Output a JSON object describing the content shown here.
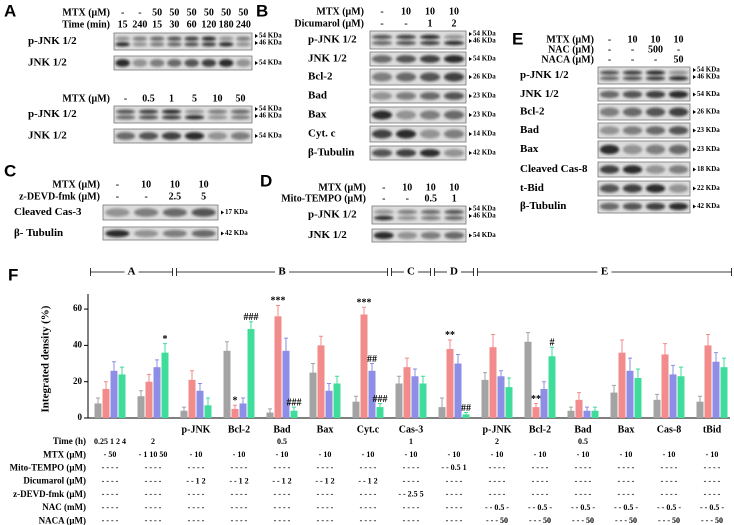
{
  "blots": [
    {
      "letter": "A",
      "conditions": [
        {
          "label": "MTX (μM)",
          "lanes": [
            "-",
            "-",
            "50",
            "50",
            "50",
            "50",
            "50",
            "50"
          ]
        },
        {
          "label": "Time (min)",
          "lanes": [
            "15",
            "240",
            "15",
            "30",
            "60",
            "120",
            "180",
            "240"
          ]
        }
      ],
      "rows": [
        {
          "label": "p-JNK 1/2",
          "markers": [
            "54 KDa",
            "46 KDa"
          ]
        },
        {
          "label": "JNK 1/2",
          "markers": [
            "54 KDa"
          ]
        }
      ]
    },
    {
      "conditions": [
        {
          "label": "MTX (μM)",
          "lanes": [
            "-",
            "0.5",
            "1",
            "5",
            "10",
            "50"
          ]
        }
      ],
      "rows": [
        {
          "label": "p-JNK 1/2",
          "markers": [
            "54 KDa",
            "46 KDa"
          ]
        },
        {
          "label": "JNK 1/2",
          "markers": [
            "54 KDa"
          ]
        }
      ]
    },
    {
      "letter": "C",
      "conditions": [
        {
          "label": "MTX (μM)",
          "lanes": [
            "-",
            "10",
            "10",
            "10"
          ]
        },
        {
          "label": "z-DEVD-fmk (μM)",
          "lanes": [
            "-",
            "-",
            "2.5",
            "5"
          ]
        }
      ],
      "rows": [
        {
          "label": "Cleaved Cas-3",
          "markers": [
            "17 KDa"
          ]
        },
        {
          "label": "β- Tubulin",
          "markers": [
            "42 KDa"
          ]
        }
      ]
    },
    {
      "letter": "B",
      "conditions": [
        {
          "label": "MTX (μM)",
          "lanes": [
            "-",
            "10",
            "10",
            "10"
          ]
        },
        {
          "label": "Dicumarol (μM)",
          "lanes": [
            "-",
            "-",
            "1",
            "2"
          ]
        }
      ],
      "rows": [
        {
          "label": "p-JNK 1/2",
          "markers": [
            "54 KDa",
            "46 KDa"
          ]
        },
        {
          "label": "JNK 1/2",
          "markers": [
            "54 KDa"
          ]
        },
        {
          "label": "Bcl-2",
          "markers": [
            "26 KDa"
          ]
        },
        {
          "label": "Bad",
          "markers": [
            "23 KDa"
          ]
        },
        {
          "label": "Bax",
          "markers": [
            "23 KDa"
          ]
        },
        {
          "label": "Cyt. c",
          "markers": [
            "14 KDa"
          ]
        },
        {
          "label": "β-Tubulin",
          "markers": [
            "42 KDa"
          ]
        }
      ]
    },
    {
      "letter": "D",
      "conditions": [
        {
          "label": "MTX (μM)",
          "lanes": [
            "-",
            "10",
            "10",
            "10"
          ]
        },
        {
          "label": "Mito-TEMPO (μM)",
          "lanes": [
            "-",
            "-",
            "0.5",
            "1"
          ]
        }
      ],
      "rows": [
        {
          "label": "p-JNK 1/2",
          "markers": [
            "54 KDa",
            "46 KDa"
          ]
        },
        {
          "label": "JNK 1/2",
          "markers": [
            "54 KDa"
          ]
        }
      ]
    },
    {
      "letter": "E",
      "conditions": [
        {
          "label": "MTX (μM)",
          "lanes": [
            "-",
            "10",
            "10",
            "10"
          ]
        },
        {
          "label": "NAC (μM)",
          "lanes": [
            "-",
            "-",
            "500",
            "-"
          ]
        },
        {
          "label": "NACA (μM)",
          "lanes": [
            "-",
            "-",
            "-",
            "50"
          ]
        }
      ],
      "rows": [
        {
          "label": "p-JNK 1/2",
          "markers": [
            "54 KDa",
            "46 KDa"
          ]
        },
        {
          "label": "JNK 1/2",
          "markers": [
            "54 KDa"
          ]
        },
        {
          "label": "Bcl-2",
          "markers": [
            "26 KDa"
          ]
        },
        {
          "label": "Bad",
          "markers": [
            "23 KDa"
          ]
        },
        {
          "label": "Bax",
          "markers": [
            "23 KDa"
          ]
        },
        {
          "label": "Cleaved Cas-8",
          "markers": [
            "18 KDa"
          ]
        },
        {
          "label": "t-Bid",
          "markers": [
            "22 KDa"
          ]
        },
        {
          "label": "β-Tubulin",
          "markers": [
            "42 KDa"
          ]
        }
      ]
    }
  ],
  "chart_data": {
    "type": "bar",
    "letter": "F",
    "ylabel": "Integrated density (%)",
    "sections": [
      "A",
      "B",
      "C",
      "D",
      "E"
    ],
    "categories": [
      null,
      null,
      "p-JNK",
      "Bcl-2",
      "Bad",
      "Bax",
      "Cyt.c",
      "Cas-3",
      null,
      "p-JNK",
      "Bcl-2",
      "Bad",
      "Bax",
      "Cas-8",
      "tBid"
    ],
    "ylim": [
      0,
      65
    ],
    "yticks": [
      0,
      20,
      40,
      60
    ],
    "series": [
      {
        "color": "#a3a3a3",
        "values": [
          8,
          12,
          4,
          37,
          3,
          25,
          9,
          19,
          6,
          21,
          42,
          4,
          14,
          10,
          9
        ],
        "errors": [
          3,
          3,
          2,
          5,
          2,
          5,
          3,
          4,
          5,
          4,
          5,
          2,
          4,
          3,
          3
        ],
        "annotations": [
          null,
          null,
          null,
          null,
          null,
          null,
          null,
          null,
          null,
          null,
          null,
          null,
          null,
          null,
          null
        ]
      },
      {
        "color": "#f28b8b",
        "values": [
          16,
          20,
          21,
          5,
          56,
          40,
          57,
          28,
          38,
          39,
          6,
          10,
          36,
          35,
          40
        ],
        "errors": [
          4,
          4,
          5,
          2,
          6,
          5,
          4,
          5,
          5,
          7,
          2,
          4,
          7,
          6,
          6
        ],
        "annotations": [
          null,
          null,
          null,
          "*",
          "***",
          null,
          "***",
          null,
          "**",
          null,
          "**",
          null,
          null,
          null,
          null
        ]
      },
      {
        "color": "#8e8ee6",
        "values": [
          26,
          28,
          15,
          8,
          37,
          15,
          26,
          23,
          30,
          23,
          16,
          4,
          26,
          24,
          31
        ],
        "errors": [
          5,
          4,
          4,
          3,
          7,
          4,
          4,
          4,
          5,
          3,
          4,
          2,
          7,
          5,
          5
        ],
        "annotations": [
          null,
          null,
          null,
          null,
          null,
          null,
          "##",
          null,
          null,
          null,
          null,
          null,
          null,
          null,
          null
        ]
      },
      {
        "color": "#3fdc9c",
        "values": [
          24,
          36,
          7,
          49,
          4,
          19,
          6,
          19,
          2,
          17,
          34,
          4,
          22,
          23,
          28
        ],
        "errors": [
          4,
          5,
          4,
          4,
          2,
          4,
          2,
          4,
          1,
          5,
          5,
          2,
          5,
          5,
          5
        ],
        "annotations": [
          null,
          "*",
          null,
          "###",
          "###",
          null,
          "###",
          null,
          "##",
          null,
          "#",
          null,
          null,
          null,
          null
        ]
      }
    ],
    "table": [
      {
        "label": "Time (h)",
        "cells": [
          "0.25 1 2 4",
          "2",
          null,
          null,
          "0.5",
          null,
          null,
          "1",
          null,
          "2",
          null,
          "0.5",
          null,
          null,
          null
        ]
      },
      {
        "label": "MTX (μM)",
        "cells": [
          "- 50",
          "- 1 10 50",
          "- 10",
          "- 10",
          "- 10",
          "- 10",
          "- 10",
          "- 10",
          "- 10",
          "- 10",
          "- 10",
          "- 10",
          "- 10",
          "- 10",
          "- 10"
        ]
      },
      {
        "label": "Mito-TEMPO (μM)",
        "cells": [
          "- - - -",
          "- - - -",
          "- - - -",
          "- - - -",
          "- - - -",
          "- - - -",
          "- - - -",
          "- - - -",
          "- - 0.5 1",
          "- - - -",
          "- - - -",
          "- - - -",
          "- - - -",
          "- - - -",
          "- - - -"
        ]
      },
      {
        "label": "Dicumarol (μM)",
        "cells": [
          "- - - -",
          "- - - -",
          "- - 1 2",
          "- - 1 2",
          "- - 1 2",
          "- - 1 2",
          "- - 1 2",
          "- - - -",
          "- - - -",
          "- - - -",
          "- - - -",
          "- - - -",
          "- - - -",
          "- - - -",
          "- - - -"
        ]
      },
      {
        "label": "z-DEVD-fmk (μM)",
        "cells": [
          "- - - -",
          "- - - -",
          "- - - -",
          "- - - -",
          "- - - -",
          "- - - -",
          "- - - -",
          "- - 2.5 5",
          "- - - -",
          "- - - -",
          "- - - -",
          "- - - -",
          "- - - -",
          "- - - -",
          "- - - -"
        ]
      },
      {
        "label": "NAC (mM)",
        "cells": [
          "- - - -",
          "- - - -",
          "- - - -",
          "- - - -",
          "- - - -",
          "- - - -",
          "- - - -",
          "- - - -",
          "- - - -",
          "- - 0.5 -",
          "- - 0.5 -",
          "- - 0.5 -",
          "- - 0.5 -",
          "- - 0.5 -",
          "- - 0.5 -"
        ]
      },
      {
        "label": "NACA (μM)",
        "cells": [
          "- - - -",
          "- - - -",
          "- - - -",
          "- - - -",
          "- - - -",
          "- - - -",
          "- - - -",
          "- - - -",
          "- - - -",
          "- - - 50",
          "- - - 50",
          "- - - 50",
          "- - - 50",
          "- - - 50",
          "- - - 50"
        ]
      }
    ]
  }
}
